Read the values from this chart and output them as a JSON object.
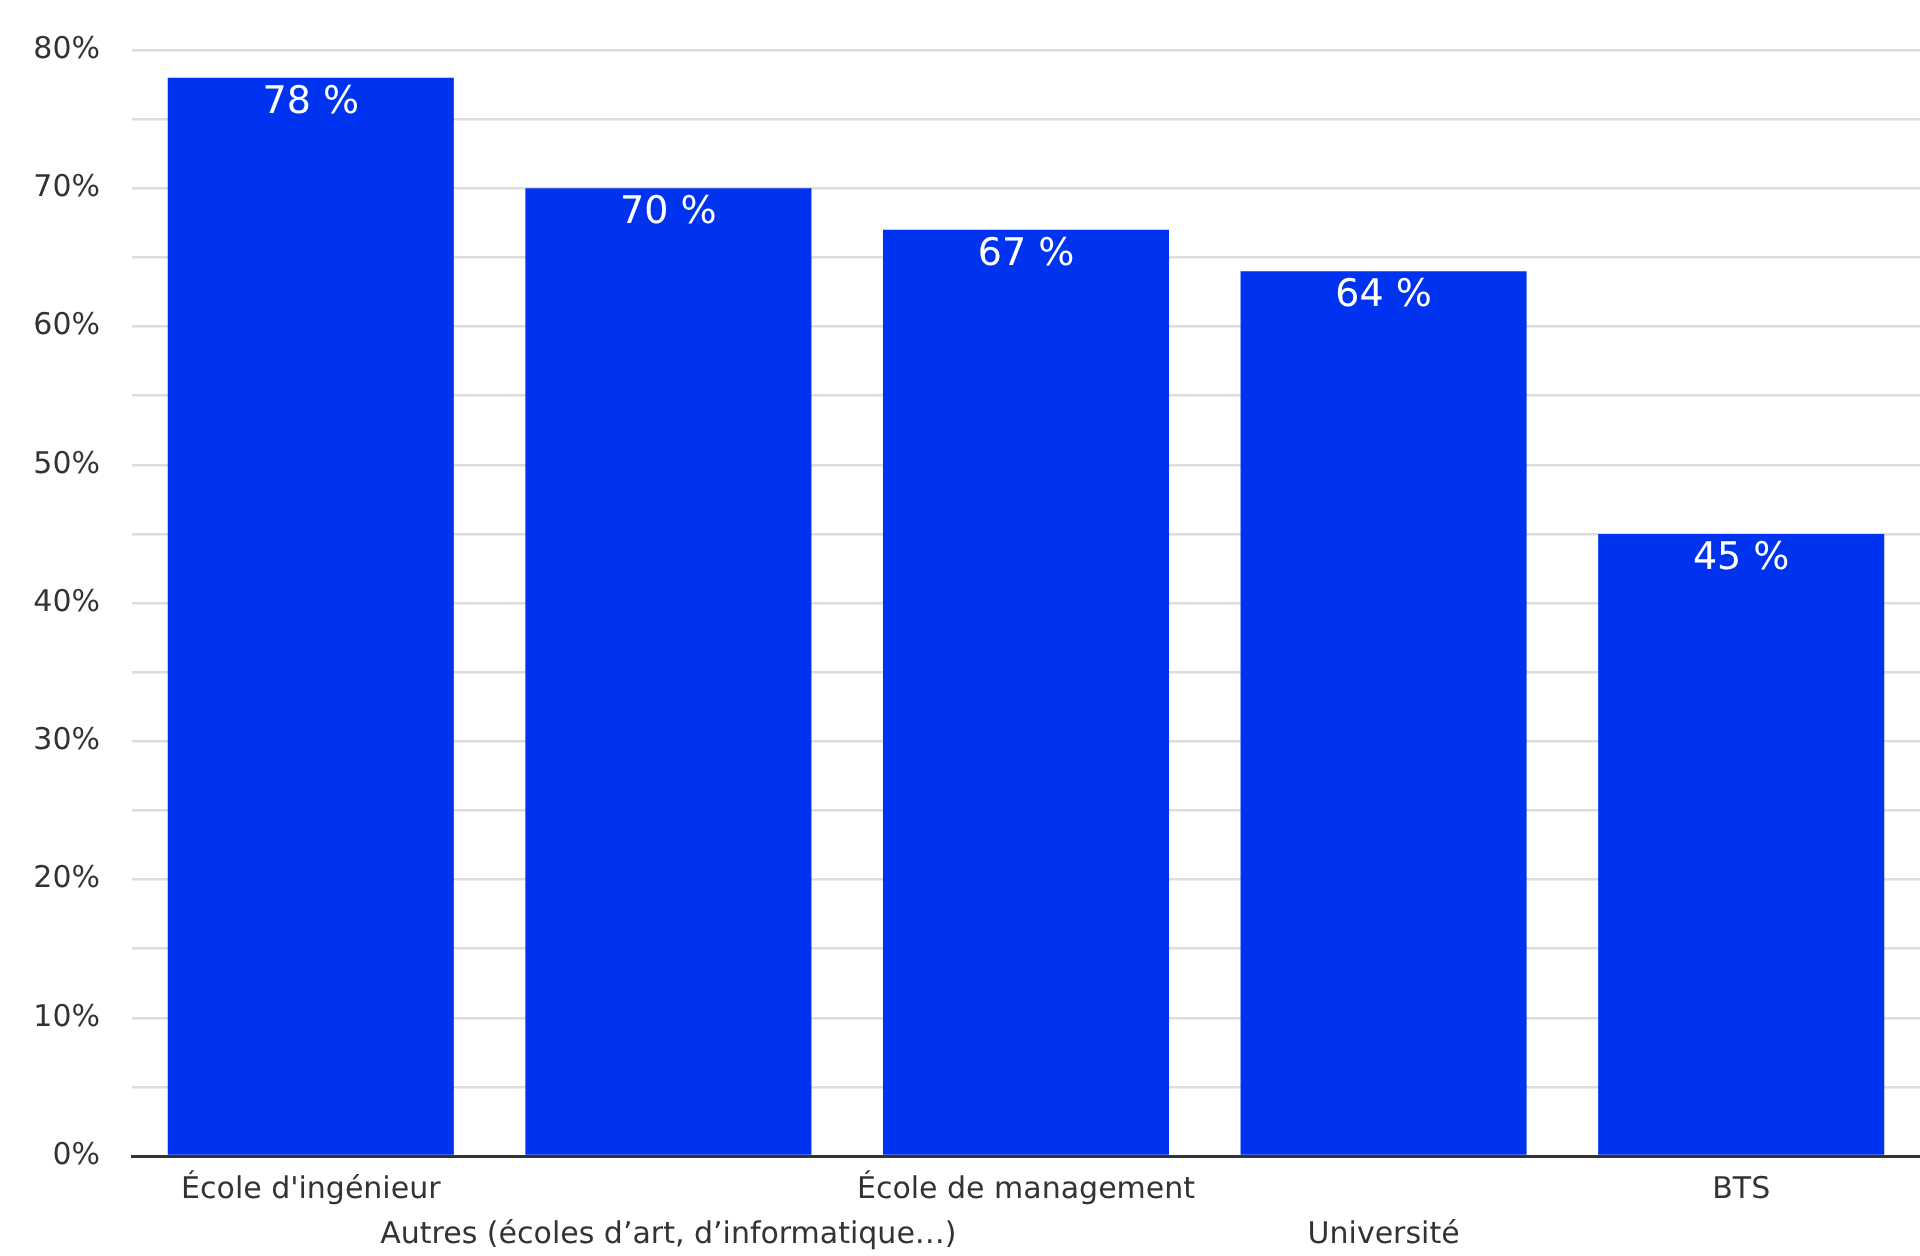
{
  "chart_data": {
    "type": "bar",
    "categories": [
      "École d'ingénieur",
      "Autres (écoles d’art, d’informatique…)",
      "École de management",
      "Université",
      "BTS"
    ],
    "values": [
      78,
      70,
      67,
      64,
      45
    ],
    "color": "#0033f0",
    "value_labels": [
      "78 %",
      "70 %",
      "67 %",
      "64 %",
      "45 %"
    ],
    "ylim": [
      0,
      80
    ],
    "yticks": [
      {
        "value": 0,
        "label": "0%"
      },
      {
        "value": 5,
        "label": null
      },
      {
        "value": 10,
        "label": "10%"
      },
      {
        "value": 15,
        "label": null
      },
      {
        "value": 20,
        "label": "20%"
      },
      {
        "value": 25,
        "label": null
      },
      {
        "value": 30,
        "label": "30%"
      },
      {
        "value": 35,
        "label": null
      },
      {
        "value": 40,
        "label": "40%"
      },
      {
        "value": 45,
        "label": null
      },
      {
        "value": 50,
        "label": "50%"
      },
      {
        "value": 55,
        "label": null
      },
      {
        "value": 60,
        "label": "60%"
      },
      {
        "value": 65,
        "label": null
      },
      {
        "value": 70,
        "label": "70%"
      },
      {
        "value": 75,
        "label": null
      },
      {
        "value": 80,
        "label": "80%"
      }
    ],
    "grid": "y"
  }
}
